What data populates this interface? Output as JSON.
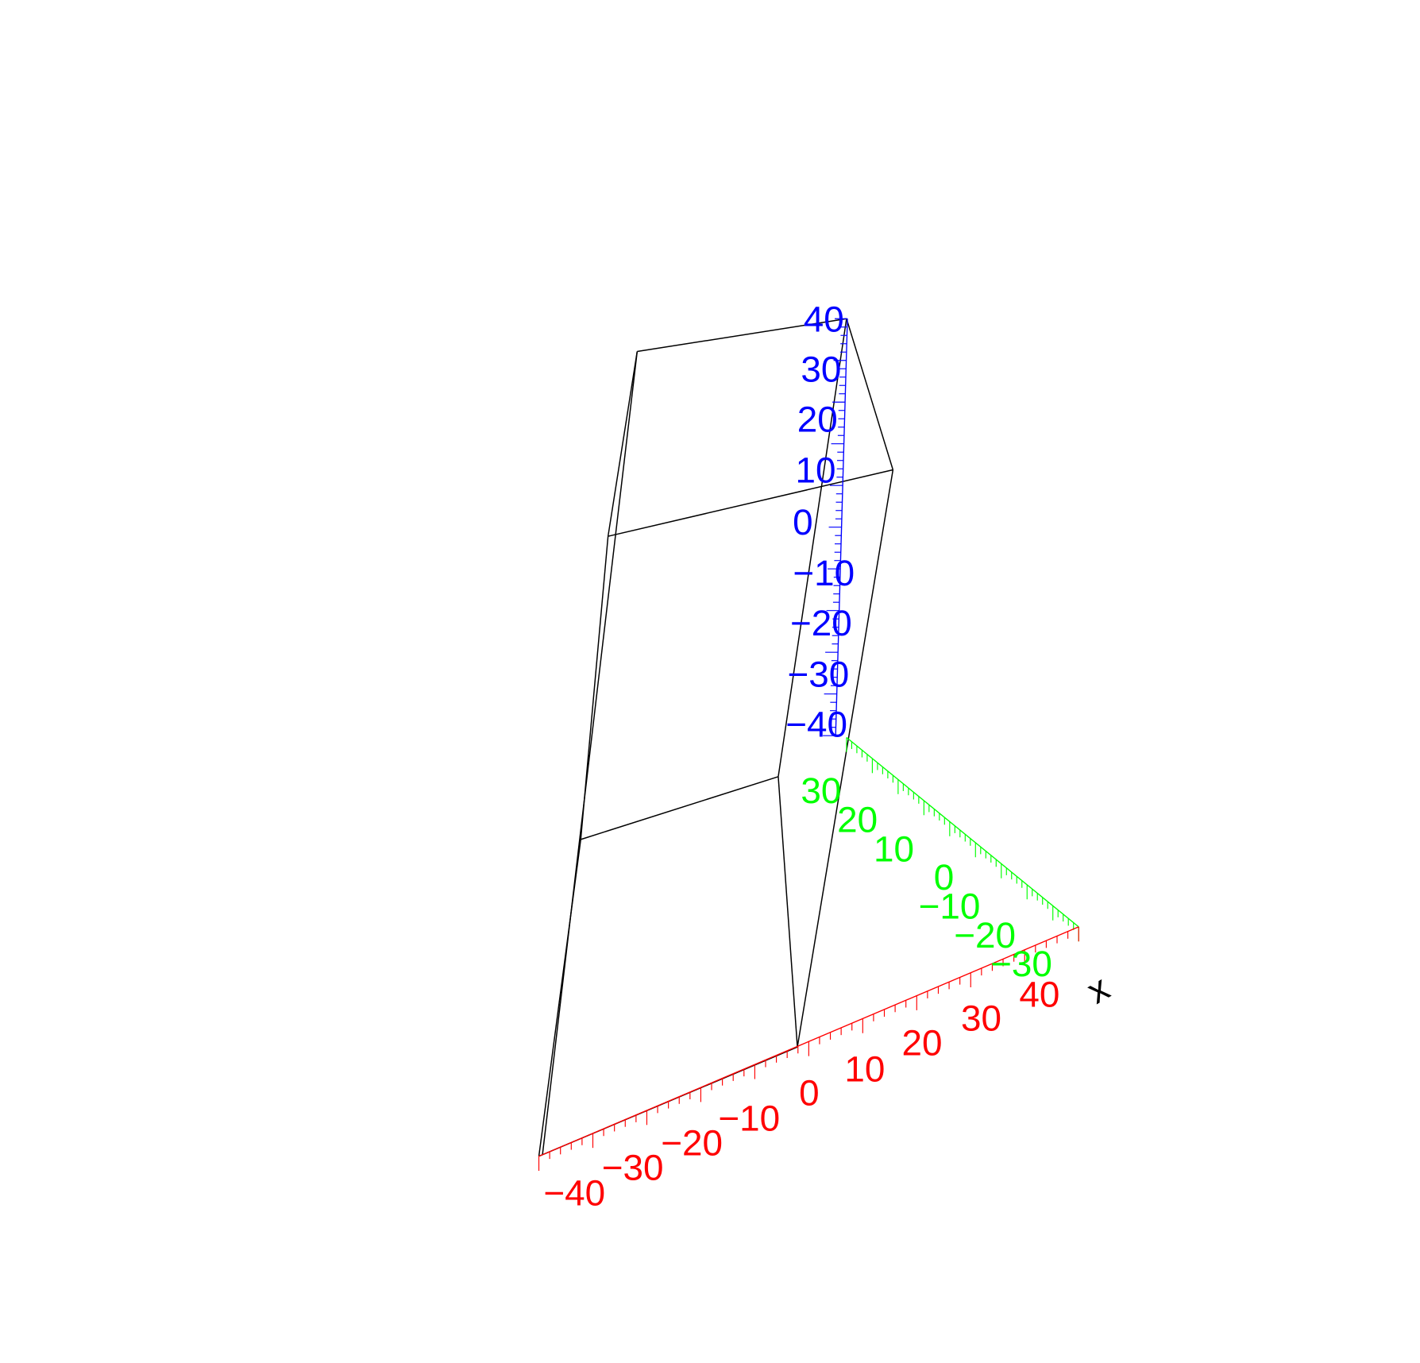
{
  "chart_data": {
    "type": "3d-wireframe",
    "axes": {
      "x": {
        "label": "x",
        "range": [
          -45,
          45
        ],
        "ticks": [
          "−40",
          "−30",
          "−20",
          "−10",
          "0",
          "10",
          "20",
          "30",
          "40"
        ],
        "color": "#ff0000"
      },
      "y": {
        "label": "",
        "range": [
          -35,
          35
        ],
        "ticks": [
          "30",
          "20",
          "10",
          "0",
          "−10",
          "−20",
          "−30"
        ],
        "color": "#00ff00"
      },
      "z": {
        "label": "",
        "range": [
          -45,
          45
        ],
        "ticks": [
          "40",
          "30",
          "20",
          "10",
          "0",
          "−10",
          "−20",
          "−30",
          "−40"
        ],
        "color": "#0000ff"
      }
    },
    "wire_color": "#000000",
    "grid": false
  }
}
